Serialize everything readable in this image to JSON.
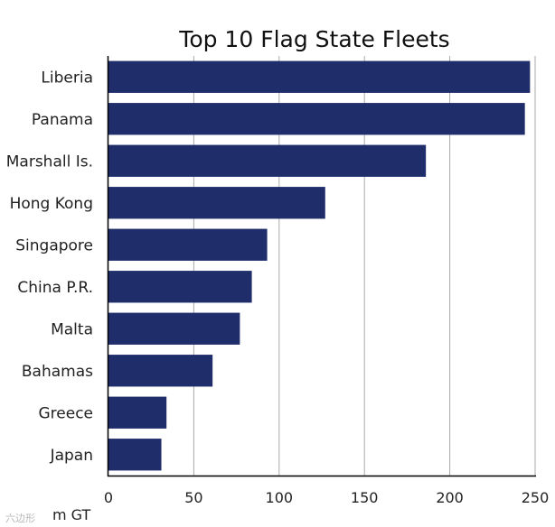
{
  "chart_data": {
    "type": "bar",
    "orientation": "horizontal",
    "title": "Top 10 Flag State Fleets",
    "categories": [
      "Liberia",
      "Panama",
      "Marshall Is.",
      "Hong Kong",
      "Singapore",
      "China P.R.",
      "Malta",
      "Bahamas",
      "Greece",
      "Japan"
    ],
    "values": [
      247,
      244,
      186,
      127,
      93,
      84,
      77,
      61,
      34,
      31
    ],
    "unit_label": "m GT",
    "xlim": [
      0,
      250
    ],
    "x_ticks": [
      "0",
      "50",
      "100",
      "150",
      "200",
      "250"
    ],
    "grid": "vertical",
    "bar_color": "#1f2d6b",
    "grid_color": "#aaaaaa"
  },
  "watermark": "六边形"
}
